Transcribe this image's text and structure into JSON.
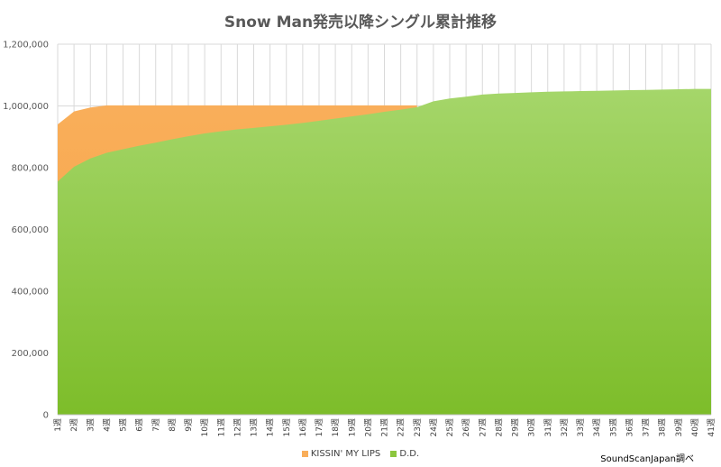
{
  "chart_data": {
    "type": "area",
    "title": "Snow Man発売以降シングル累計推移",
    "xlabel": "",
    "ylabel": "",
    "ylim": [
      0,
      1200000
    ],
    "yticks": [
      0,
      200000,
      400000,
      600000,
      800000,
      1000000,
      1200000
    ],
    "ytick_labels": [
      "0",
      "200,000",
      "400,000",
      "600,000",
      "800,000",
      "1,000,000",
      "1,200,000"
    ],
    "categories": [
      "1週",
      "2週",
      "3週",
      "4週",
      "5週",
      "6週",
      "7週",
      "8週",
      "9週",
      "10週",
      "11週",
      "12週",
      "13週",
      "14週",
      "15週",
      "16週",
      "17週",
      "18週",
      "19週",
      "20週",
      "21週",
      "22週",
      "23週",
      "24週",
      "25週",
      "26週",
      "27週",
      "28週",
      "29週",
      "30週",
      "31週",
      "32週",
      "33週",
      "34週",
      "35週",
      "36週",
      "37週",
      "38週",
      "39週",
      "40週",
      "41週"
    ],
    "series": [
      {
        "name": "KISSIN' MY LIPS",
        "color": "#F9AE5A",
        "values": [
          940000,
          982000,
          995000,
          1002000,
          1002000,
          1002000,
          1002000,
          1002000,
          1002000,
          1002000,
          1002000,
          1002000,
          1002000,
          1002000,
          1002000,
          1002000,
          1002000,
          1002000,
          1002000,
          1002000,
          1002000,
          1002000,
          1002000,
          null,
          null,
          null,
          null,
          null,
          null,
          null,
          null,
          null,
          null,
          null,
          null,
          null,
          null,
          null,
          null,
          null,
          null
        ]
      },
      {
        "name": "D.D.",
        "color": "#8CC63E",
        "values": [
          755000,
          803000,
          830000,
          848000,
          860000,
          871000,
          881000,
          892000,
          902000,
          911000,
          918000,
          924000,
          929000,
          934000,
          939000,
          945000,
          952000,
          959000,
          966000,
          973000,
          981000,
          988000,
          996000,
          1015000,
          1024000,
          1030000,
          1037000,
          1040000,
          1042000,
          1044000,
          1046000,
          1047000,
          1048000,
          1049000,
          1050000,
          1051000,
          1052000,
          1053000,
          1054000,
          1055000,
          1055000
        ]
      }
    ],
    "grid": true,
    "legend_position": "bottom"
  },
  "source_note": "SoundScanJapan調べ"
}
